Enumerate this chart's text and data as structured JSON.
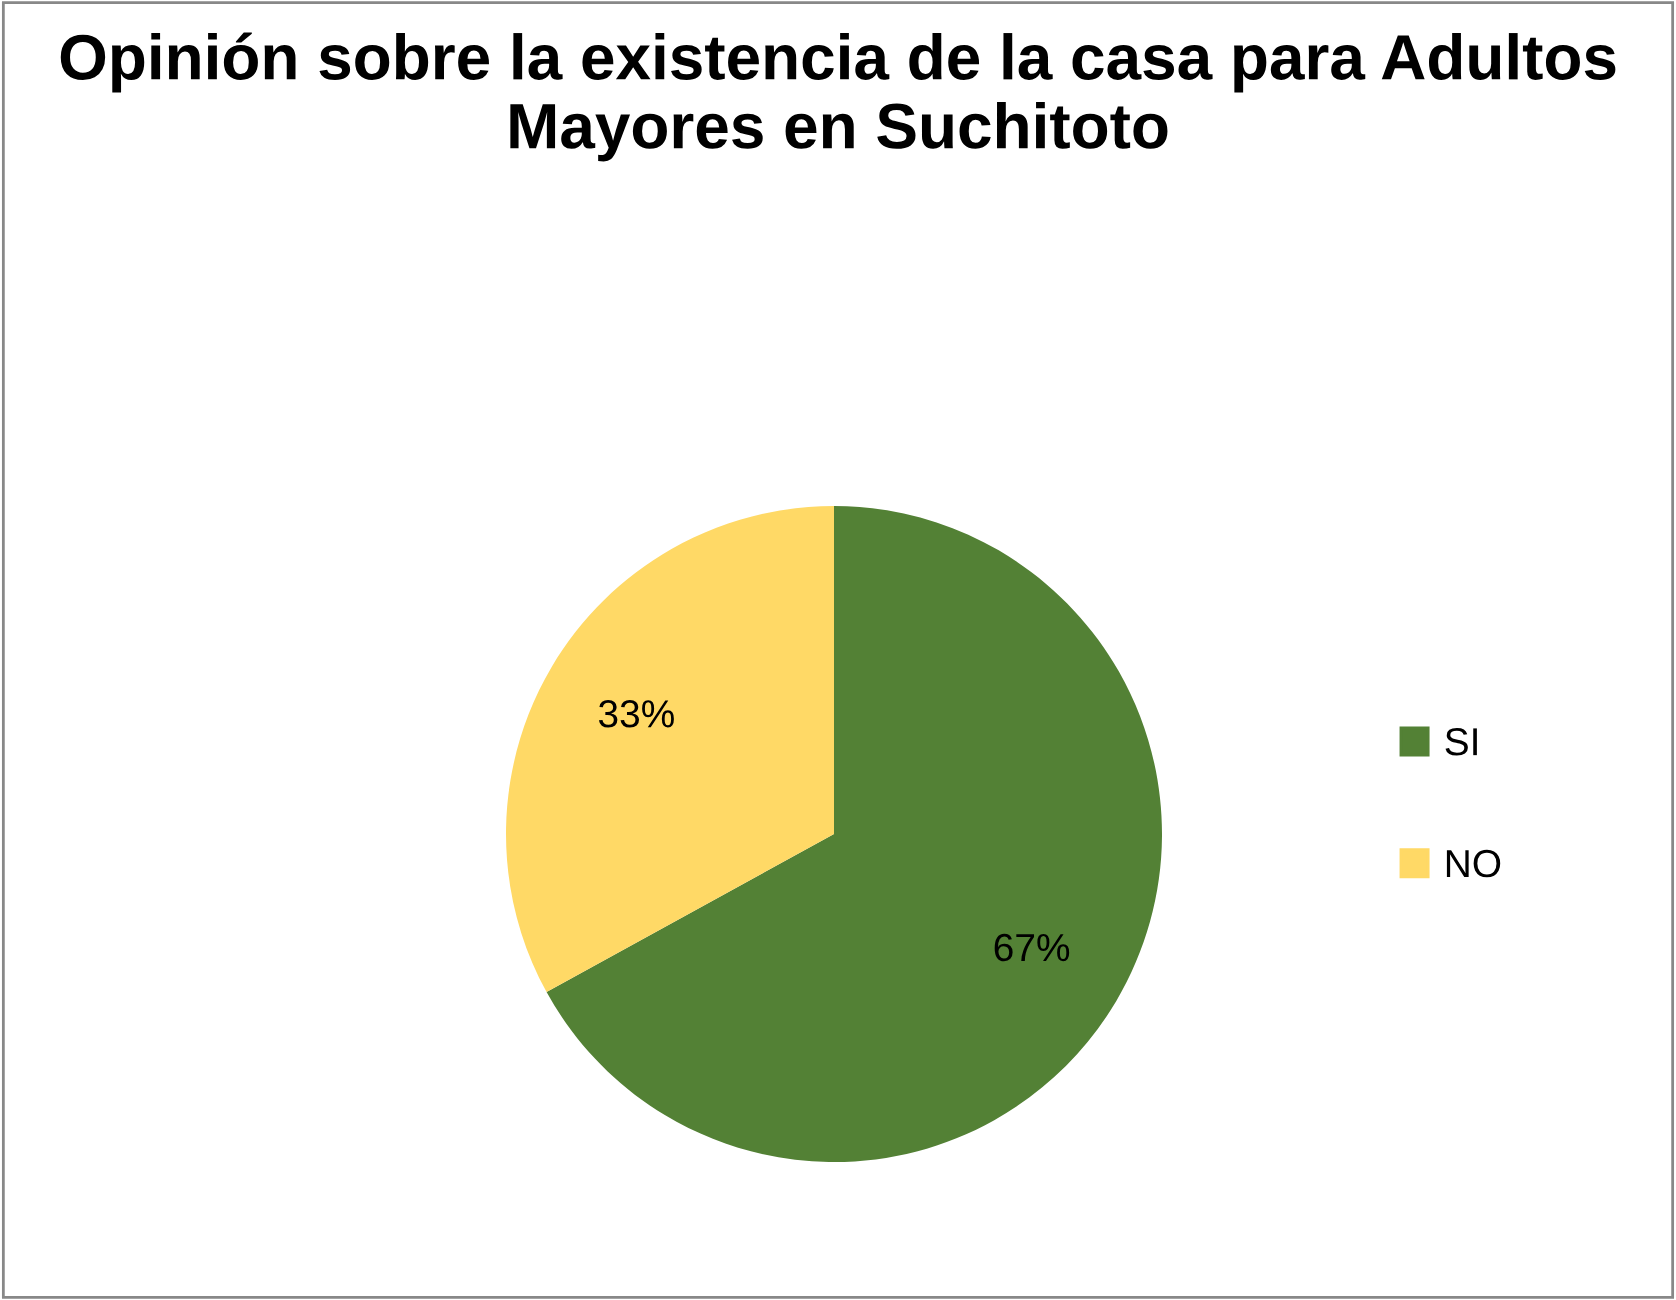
{
  "chart_data": {
    "type": "pie",
    "title": "Opinión sobre la existencia de la casa para Adultos Mayores en Suchitoto",
    "categories": [
      "SI",
      "NO"
    ],
    "values": [
      67,
      33
    ],
    "colors": [
      "#538135",
      "#ffd966"
    ],
    "value_labels": [
      "67%",
      "33%"
    ],
    "legend": "right"
  }
}
